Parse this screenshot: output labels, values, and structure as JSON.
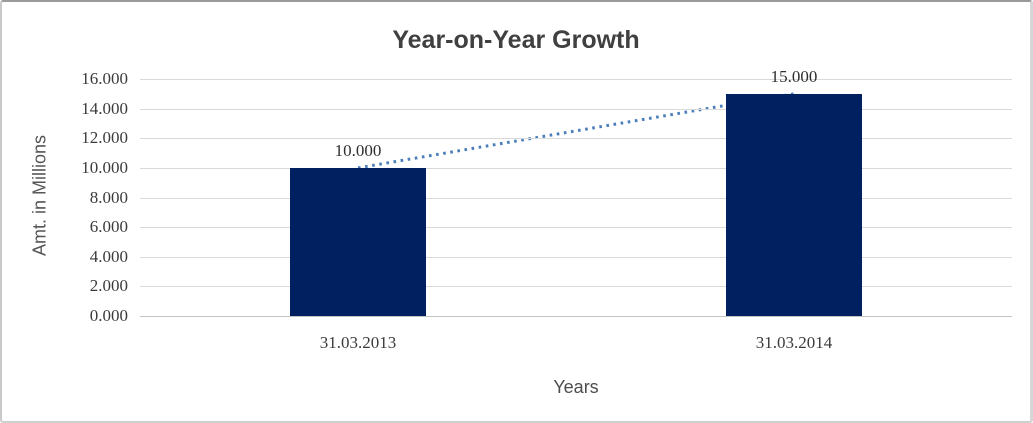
{
  "window": {
    "background": "#ffffff",
    "frame_border_color": "#9a9a9a"
  },
  "chart_data": {
    "type": "bar",
    "title": "Year-on-Year Growth",
    "xlabel": "Years",
    "ylabel": "Amt. in Millions",
    "categories": [
      "31.03.2013",
      "31.03.2014"
    ],
    "series": [
      {
        "name": "amount-bars",
        "type": "bar",
        "values": [
          10000,
          15000
        ],
        "value_labels": [
          "10.000",
          "15.000"
        ],
        "color": "#002060"
      },
      {
        "name": "trend-line",
        "type": "line",
        "line_style": "dotted",
        "values": [
          10000,
          15000
        ],
        "color": "#4a7ebb"
      }
    ],
    "ylim": [
      0,
      16000
    ],
    "yticks": [
      {
        "value": 0,
        "label": "0.000"
      },
      {
        "value": 2000,
        "label": "2.000"
      },
      {
        "value": 4000,
        "label": "4.000"
      },
      {
        "value": 6000,
        "label": "6.000"
      },
      {
        "value": 8000,
        "label": "8.000"
      },
      {
        "value": 10000,
        "label": "10.000"
      },
      {
        "value": 12000,
        "label": "12.000"
      },
      {
        "value": 14000,
        "label": "14.000"
      },
      {
        "value": 16000,
        "label": "16.000"
      }
    ],
    "grid": true,
    "legend": false,
    "colors": {
      "gridline": "#d9d9d9",
      "axis_line": "#c3c3c3",
      "tick_text": "#3b3b3b",
      "axis_title_text": "#555555",
      "title_text": "#404040"
    }
  }
}
